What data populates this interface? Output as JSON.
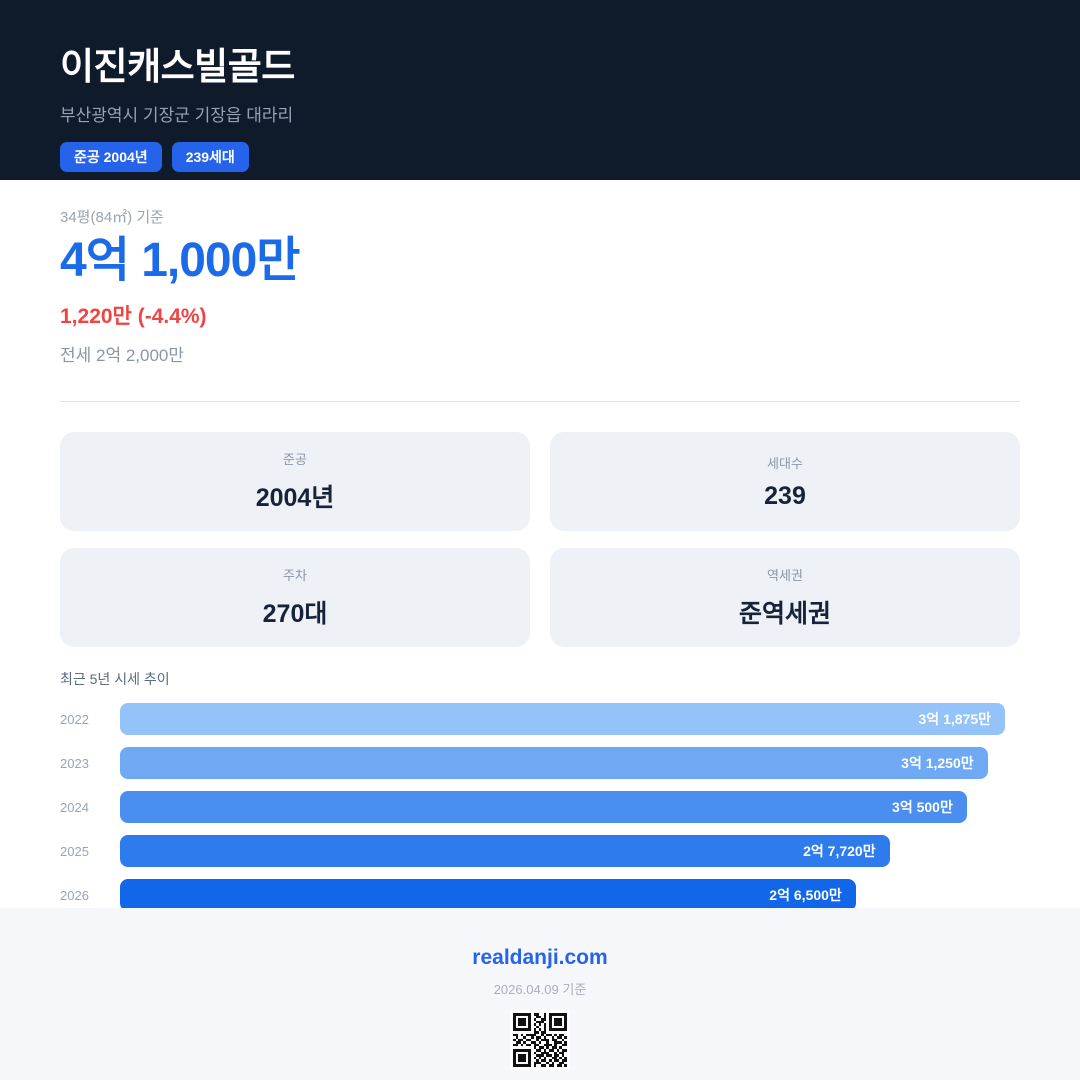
{
  "header": {
    "title": "이진캐스빌골드",
    "subtitle": "부산광역시 기장군 기장읍 대라리",
    "badges": [
      {
        "label": "준공 2004년"
      },
      {
        "label": "239세대"
      }
    ]
  },
  "price": {
    "basis": "34평(84㎡) 기준",
    "sale_price": "4억 1,000만",
    "change": "1,220만 (-4.4%)",
    "jeonse": "전세 2억 2,000만"
  },
  "info_cards": [
    {
      "label": "준공",
      "value": "2004년"
    },
    {
      "label": "세대수",
      "value": "239"
    },
    {
      "label": "주차",
      "value": "270대"
    },
    {
      "label": "역세권",
      "value": "준역세권"
    }
  ],
  "chart_data": {
    "type": "bar",
    "orientation": "horizontal",
    "title": "최근 5년 시세 추이",
    "categories": [
      "2022",
      "2023",
      "2024",
      "2025",
      "2026"
    ],
    "values": [
      31875,
      31250,
      30500,
      27720,
      26500
    ],
    "value_unit": "만원",
    "labels": [
      "3억 1,875만",
      "3억 1,250만",
      "3억 500만",
      "2억 7,720만",
      "2억 6,500만"
    ],
    "bar_colors": [
      "#93c3f8",
      "#6fa9f3",
      "#4a8ff0",
      "#2e7bee",
      "#1166ea"
    ],
    "xlim": [
      0,
      31875
    ],
    "grid": false,
    "legend": false
  },
  "footer": {
    "site": "realdanji.com",
    "date": "2026.04.09 기준",
    "qr_pattern": [
      "111111101100101111111",
      "100000100110101000001",
      "101110101001101011101",
      "101110100111001011101",
      "101110101010101011101",
      "100000100100101000001",
      "111111101010101111111",
      "000000001101100000000",
      "110101111001011010110",
      "010010010110100101101",
      "101101100101110110010",
      "011010011010010011101",
      "110101101100111010011",
      "000000001011010110100",
      "111111100110101101011",
      "100000101001110010110",
      "101110100111011011010",
      "101110101010100110101",
      "101110100101101011011",
      "100000101110010100110",
      "111111101001101101101"
    ]
  },
  "colors": {
    "header_bg": "#0f1a2b",
    "accent": "#2563eb",
    "price_blue": "#1b6ae8",
    "change_red": "#ef4444",
    "card_bg": "#eef1f6",
    "footer_bg": "#f5f7fa"
  }
}
